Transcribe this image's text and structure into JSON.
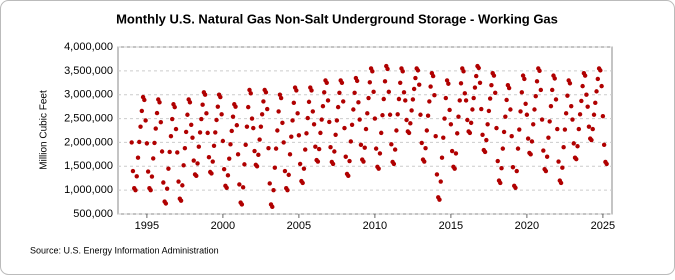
{
  "chart_data": {
    "type": "scatter",
    "title": "Monthly U.S. Natural Gas Non-Salt Underground Storage - Working Gas",
    "ylabel": "Million Cubic Feet",
    "source": "Source: U.S. Energy Information Administration",
    "color": "#b00000",
    "grid": true,
    "xlim": [
      1993.1,
      2025.6
    ],
    "xticks": [
      1995,
      2000,
      2005,
      2010,
      2015,
      2020,
      2025
    ],
    "ylim": [
      500000,
      4000000
    ],
    "yticks": [
      {
        "value": 500000,
        "label": "500,000"
      },
      {
        "value": 1000000,
        "label": "1,000,000"
      },
      {
        "value": 1500000,
        "label": "1,500,000"
      },
      {
        "value": 2000000,
        "label": "2,000,000"
      },
      {
        "value": 2500000,
        "label": "2,500,000"
      },
      {
        "value": 3000000,
        "label": "3,000,000"
      },
      {
        "value": 3500000,
        "label": "3,500,000"
      },
      {
        "value": 4000000,
        "label": "4,000,000"
      }
    ],
    "x": [
      1994,
      1994.083,
      1994.167,
      1994.25,
      1994.333,
      1994.417,
      1994.5,
      1994.583,
      1994.667,
      1994.75,
      1994.833,
      1994.917,
      1995,
      1995.083,
      1995.167,
      1995.25,
      1995.333,
      1995.417,
      1995.5,
      1995.583,
      1995.667,
      1995.75,
      1995.833,
      1995.917,
      1996,
      1996.083,
      1996.167,
      1996.25,
      1996.333,
      1996.417,
      1996.5,
      1996.583,
      1996.667,
      1996.75,
      1996.833,
      1996.917,
      1997,
      1997.083,
      1997.167,
      1997.25,
      1997.333,
      1997.417,
      1997.5,
      1997.583,
      1997.667,
      1997.75,
      1997.833,
      1997.917,
      1998,
      1998.083,
      1998.167,
      1998.25,
      1998.333,
      1998.417,
      1998.5,
      1998.583,
      1998.667,
      1998.75,
      1998.833,
      1998.917,
      1999,
      1999.083,
      1999.167,
      1999.25,
      1999.333,
      1999.417,
      1999.5,
      1999.583,
      1999.667,
      1999.75,
      1999.833,
      1999.917,
      2000,
      2000.083,
      2000.167,
      2000.25,
      2000.333,
      2000.417,
      2000.5,
      2000.583,
      2000.667,
      2000.75,
      2000.833,
      2000.917,
      2001,
      2001.083,
      2001.167,
      2001.25,
      2001.333,
      2001.417,
      2001.5,
      2001.583,
      2001.667,
      2001.75,
      2001.833,
      2001.917,
      2002,
      2002.083,
      2002.167,
      2002.25,
      2002.333,
      2002.417,
      2002.5,
      2002.583,
      2002.667,
      2002.75,
      2002.833,
      2002.917,
      2003,
      2003.083,
      2003.167,
      2003.25,
      2003.333,
      2003.417,
      2003.5,
      2003.583,
      2003.667,
      2003.75,
      2003.833,
      2003.917,
      2004,
      2004.083,
      2004.167,
      2004.25,
      2004.333,
      2004.417,
      2004.5,
      2004.583,
      2004.667,
      2004.75,
      2004.833,
      2004.917,
      2005,
      2005.083,
      2005.167,
      2005.25,
      2005.333,
      2005.417,
      2005.5,
      2005.583,
      2005.667,
      2005.75,
      2005.833,
      2005.917,
      2006,
      2006.083,
      2006.167,
      2006.25,
      2006.333,
      2006.417,
      2006.5,
      2006.583,
      2006.667,
      2006.75,
      2006.833,
      2006.917,
      2007,
      2007.083,
      2007.167,
      2007.25,
      2007.333,
      2007.417,
      2007.5,
      2007.583,
      2007.667,
      2007.75,
      2007.833,
      2007.917,
      2008,
      2008.083,
      2008.167,
      2008.25,
      2008.333,
      2008.417,
      2008.5,
      2008.583,
      2008.667,
      2008.75,
      2008.833,
      2008.917,
      2009,
      2009.083,
      2009.167,
      2009.25,
      2009.333,
      2009.417,
      2009.5,
      2009.583,
      2009.667,
      2009.75,
      2009.833,
      2009.917,
      2010,
      2010.083,
      2010.167,
      2010.25,
      2010.333,
      2010.417,
      2010.5,
      2010.583,
      2010.667,
      2010.75,
      2010.833,
      2010.917,
      2011,
      2011.083,
      2011.167,
      2011.25,
      2011.333,
      2011.417,
      2011.5,
      2011.583,
      2011.667,
      2011.75,
      2011.833,
      2011.917,
      2012,
      2012.083,
      2012.167,
      2012.25,
      2012.333,
      2012.417,
      2012.5,
      2012.583,
      2012.667,
      2012.75,
      2012.833,
      2012.917,
      2013,
      2013.083,
      2013.167,
      2013.25,
      2013.333,
      2013.417,
      2013.5,
      2013.583,
      2013.667,
      2013.75,
      2013.833,
      2013.917,
      2014,
      2014.083,
      2014.167,
      2014.25,
      2014.333,
      2014.417,
      2014.5,
      2014.583,
      2014.667,
      2014.75,
      2014.833,
      2014.917,
      2015,
      2015.083,
      2015.167,
      2015.25,
      2015.333,
      2015.417,
      2015.5,
      2015.583,
      2015.667,
      2015.75,
      2015.833,
      2015.917,
      2016,
      2016.083,
      2016.167,
      2016.25,
      2016.333,
      2016.417,
      2016.5,
      2016.583,
      2016.667,
      2016.75,
      2016.833,
      2016.917,
      2017,
      2017.083,
      2017.167,
      2017.25,
      2017.333,
      2017.417,
      2017.5,
      2017.583,
      2017.667,
      2017.75,
      2017.833,
      2017.917,
      2018,
      2018.083,
      2018.167,
      2018.25,
      2018.333,
      2018.417,
      2018.5,
      2018.583,
      2018.667,
      2018.75,
      2018.833,
      2018.917,
      2019,
      2019.083,
      2019.167,
      2019.25,
      2019.333,
      2019.417,
      2019.5,
      2019.583,
      2019.667,
      2019.75,
      2019.833,
      2019.917,
      2020,
      2020.083,
      2020.167,
      2020.25,
      2020.333,
      2020.417,
      2020.5,
      2020.583,
      2020.667,
      2020.75,
      2020.833,
      2020.917,
      2021,
      2021.083,
      2021.167,
      2021.25,
      2021.333,
      2021.417,
      2021.5,
      2021.583,
      2021.667,
      2021.75,
      2021.833,
      2021.917,
      2022,
      2022.083,
      2022.167,
      2022.25,
      2022.333,
      2022.417,
      2022.5,
      2022.583,
      2022.667,
      2022.75,
      2022.833,
      2022.917,
      2023,
      2023.083,
      2023.167,
      2023.25,
      2023.333,
      2023.417,
      2023.5,
      2023.583,
      2023.667,
      2023.75,
      2023.833,
      2023.917,
      2024,
      2024.083,
      2024.167,
      2024.25,
      2024.333,
      2024.417,
      2024.5,
      2024.583,
      2024.667,
      2024.75,
      2024.833,
      2024.917,
      2025,
      2025.083,
      2025.167,
      2025.25
    ],
    "values": [
      2000000,
      1400000,
      1040000,
      1000000,
      1290000,
      1680000,
      2010000,
      2330000,
      2660000,
      2950000,
      2890000,
      2460000,
      1980000,
      1390000,
      1040000,
      1000000,
      1285000,
      1665000,
      1990000,
      2290000,
      2615000,
      2900000,
      2840000,
      2425000,
      1810000,
      1160000,
      760000,
      720000,
      1030000,
      1450000,
      1800000,
      2130000,
      2490000,
      2800000,
      2740000,
      2280000,
      1790000,
      1180000,
      820000,
      780000,
      1100000,
      1520000,
      1880000,
      2220000,
      2580000,
      2900000,
      2840000,
      2370000,
      2100000,
      1620000,
      1330000,
      1300000,
      1560000,
      1910000,
      2210000,
      2490000,
      2790000,
      3050000,
      3000000,
      2610000,
      2200000,
      1690000,
      1380000,
      1350000,
      1600000,
      1930000,
      2210000,
      2470000,
      2750000,
      3000000,
      2950000,
      2590000,
      2030000,
      1440000,
      1090000,
      1050000,
      1310000,
      1660000,
      1960000,
      2240000,
      2540000,
      2800000,
      2750000,
      2360000,
      1750000,
      1120000,
      740000,
      700000,
      1060000,
      1540000,
      1950000,
      2330000,
      2740000,
      3100000,
      3030000,
      2500000,
      2300000,
      1820000,
      1530000,
      1500000,
      1740000,
      2060000,
      2330000,
      2590000,
      2860000,
      3100000,
      3050000,
      2700000,
      1880000,
      1140000,
      700000,
      650000,
      1000000,
      1470000,
      1870000,
      2250000,
      2650000,
      3000000,
      2930000,
      2410000,
      2000000,
      1400000,
      1040000,
      1000000,
      1320000,
      1750000,
      2120000,
      2460000,
      2830000,
      3150000,
      3090000,
      2610000,
      2150000,
      1550000,
      1190000,
      1150000,
      1450000,
      1850000,
      2190000,
      2510000,
      2850000,
      3150000,
      3090000,
      2650000,
      2380000,
      1910000,
      1630000,
      1600000,
      1860000,
      2200000,
      2480000,
      2760000,
      3050000,
      3300000,
      3250000,
      2880000,
      2430000,
      1900000,
      1590000,
      1550000,
      1810000,
      2160000,
      2460000,
      2740000,
      3040000,
      3300000,
      3250000,
      2860000,
      2300000,
      1700000,
      1340000,
      1300000,
      1610000,
      2020000,
      2370000,
      2690000,
      3040000,
      3350000,
      3290000,
      2840000,
      2480000,
      1950000,
      1640000,
      1600000,
      1890000,
      2280000,
      2610000,
      2930000,
      3260000,
      3550000,
      3490000,
      3060000,
      2500000,
      1870000,
      1490000,
      1450000,
      1770000,
      2200000,
      2570000,
      2910000,
      3280000,
      3600000,
      3540000,
      3060000,
      2580000,
      1960000,
      1590000,
      1550000,
      1850000,
      2250000,
      2590000,
      2910000,
      3250000,
      3550000,
      3490000,
      3050000,
      2880000,
      2470000,
      2230000,
      2200000,
      2400000,
      2670000,
      2900000,
      3120000,
      3350000,
      3550000,
      3510000,
      3210000,
      2580000,
      1990000,
      1640000,
      1600000,
      1880000,
      2250000,
      2560000,
      2860000,
      3170000,
      3450000,
      3390000,
      2990000,
      2130000,
      1330000,
      850000,
      800000,
      1180000,
      1680000,
      2100000,
      2500000,
      2930000,
      3300000,
      3230000,
      2680000,
      2380000,
      1820000,
      1490000,
      1450000,
      1770000,
      2190000,
      2540000,
      2880000,
      3240000,
      3550000,
      3490000,
      3030000,
      2880000,
      2470000,
      2230000,
      2200000,
      2410000,
      2690000,
      2930000,
      3150000,
      3390000,
      3600000,
      3560000,
      3250000,
      2700000,
      2160000,
      1840000,
      1800000,
      2050000,
      2380000,
      2660000,
      2920000,
      3200000,
      3450000,
      3400000,
      3040000,
      2300000,
      1610000,
      1200000,
      1150000,
      1460000,
      1870000,
      2220000,
      2540000,
      2890000,
      3200000,
      3140000,
      2690000,
      2130000,
      1480000,
      1090000,
      1050000,
      1400000,
      1870000,
      2270000,
      2650000,
      3050000,
      3400000,
      3330000,
      2810000,
      2580000,
      2080000,
      1780000,
      1750000,
      2020000,
      2380000,
      2690000,
      2970000,
      3280000,
      3550000,
      3500000,
      3100000,
      2480000,
      1830000,
      1440000,
      1400000,
      1700000,
      2100000,
      2440000,
      2760000,
      3100000,
      3400000,
      3340000,
      2900000,
      2280000,
      1600000,
      1200000,
      1150000,
      1470000,
      1900000,
      2270000,
      2610000,
      2980000,
      3300000,
      3240000,
      2760000,
      2480000,
      1980000,
      1680000,
      1650000,
      1920000,
      2280000,
      2590000,
      2870000,
      3180000,
      3450000,
      3400000,
      3000000,
      2750000,
      2330000,
      2080000,
      2050000,
      2280000,
      2580000,
      2830000,
      3070000,
      3330000,
      3550000,
      3510000,
      3180000,
      2550000,
      1950000,
      1590000,
      1550000
    ]
  }
}
